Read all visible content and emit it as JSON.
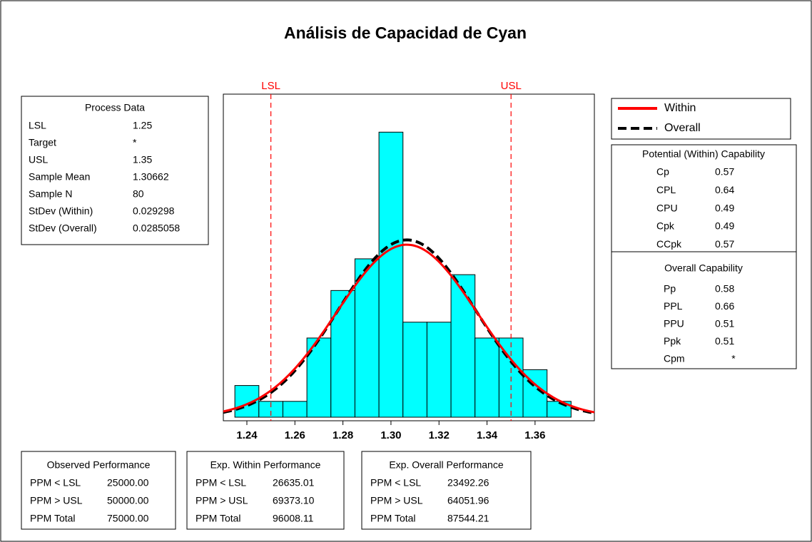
{
  "chart_data": {
    "type": "histogram",
    "title": "Análisis de Capacidad de Cyan",
    "bins": [
      1.235,
      1.245,
      1.255,
      1.265,
      1.275,
      1.285,
      1.295,
      1.305,
      1.315,
      1.325,
      1.335,
      1.345,
      1.355,
      1.365,
      1.375
    ],
    "counts": [
      2,
      1,
      1,
      5,
      8,
      10,
      18,
      6,
      6,
      9,
      5,
      5,
      3,
      1
    ],
    "color": "#00ffff",
    "xlim": [
      1.2302,
      1.3847
    ],
    "xticks": [
      1.24,
      1.26,
      1.28,
      {
        "value": 1.3,
        "label": "1.30"
      },
      1.32,
      1.34,
      1.36
    ],
    "ylim": [
      0,
      20.4
    ],
    "spec_color": "#ff0000",
    "series": [
      {
        "name": "Within",
        "color": "#ff0000",
        "style": "solid"
      },
      {
        "name": "Overall",
        "color": "#000000",
        "style": "dashed"
      }
    ],
    "process_data": {
      "title": "Process Data",
      "rows": [
        [
          "LSL",
          1.25
        ],
        [
          "Target",
          "*"
        ],
        [
          "USL",
          1.35
        ],
        [
          "Sample Mean",
          1.30662
        ],
        [
          "Sample N",
          80
        ],
        [
          "StDev (Within)",
          0.029298
        ],
        [
          "StDev (Overall)",
          0.0285058
        ]
      ]
    },
    "potential": {
      "title": "Potential (Within) Capability",
      "rows": [
        [
          "Cp",
          0.57
        ],
        [
          "CPL",
          0.64
        ],
        [
          "CPU",
          0.49
        ],
        [
          "Cpk",
          0.49
        ],
        [
          "CCpk",
          0.57
        ]
      ]
    },
    "overall": {
      "title": "Overall Capability",
      "rows": [
        [
          "Pp",
          0.58
        ],
        [
          "PPL",
          0.66
        ],
        [
          "PPU",
          0.51
        ],
        [
          "Ppk",
          0.51
        ],
        [
          "Cpm",
          "*"
        ]
      ]
    },
    "performance": [
      {
        "title": "Observed Performance",
        "rows": [
          [
            "PPM < LSL",
            "25000.00"
          ],
          [
            "PPM > USL",
            "50000.00"
          ],
          [
            "PPM Total",
            "75000.00"
          ]
        ]
      },
      {
        "title": "Exp. Within Performance",
        "rows": [
          [
            "PPM < LSL",
            "26635.01"
          ],
          [
            "PPM > USL",
            "69373.10"
          ],
          [
            "PPM Total",
            "96008.11"
          ]
        ]
      },
      {
        "title": "Exp. Overall Performance",
        "rows": [
          [
            "PPM < LSL",
            "23492.26"
          ],
          [
            "PPM > USL",
            "64051.96"
          ],
          [
            "PPM Total",
            "87544.21"
          ]
        ]
      }
    ]
  }
}
